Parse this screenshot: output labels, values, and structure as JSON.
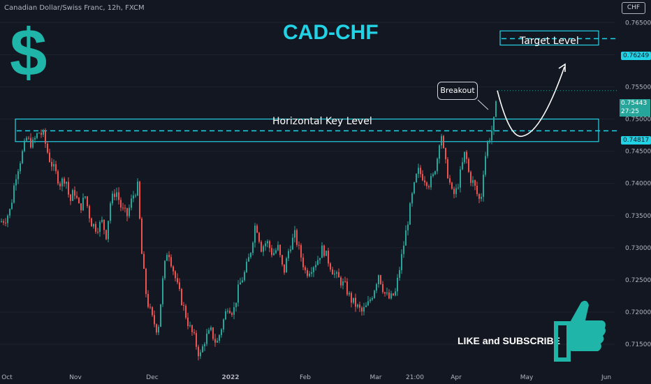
{
  "header": {
    "symbol_title": "Canadian Dollar/Swiss Franc, 12h, FXCM",
    "currency_button": "CHF"
  },
  "annotations": {
    "main_title": "CAD-CHF",
    "dollar_symbol": "$",
    "target_label": "Target Level",
    "key_level_label": "Horizontal Key Level",
    "breakout_label": "Breakout",
    "like_subscribe": "LIKE and SUBSCRIBE"
  },
  "price_badges": {
    "target": "0.76249",
    "key": "0.74817",
    "current_price": "0.75443",
    "countdown": "27:25"
  },
  "colors": {
    "background": "#131722",
    "up": "#26a69a",
    "down": "#ef5350",
    "accent": "#22d3e6",
    "icon": "#1fb5a8"
  },
  "chart_data": {
    "type": "candlestick",
    "title": "CAD-CHF",
    "ylim": [
      0.711,
      0.7685
    ],
    "y_ticks": [
      "0.76500",
      "0.76000",
      "0.75500",
      "0.75000",
      "0.74500",
      "0.74000",
      "0.73500",
      "0.73000",
      "0.72500",
      "0.72000",
      "0.71500"
    ],
    "x_ticks": [
      "Oct",
      "Nov",
      "Dec",
      "2022",
      "Feb",
      "Mar",
      "21:00",
      "Apr",
      "May",
      "Jun"
    ],
    "key_level_zone": [
      0.7465,
      0.75
    ],
    "key_level": 0.74817,
    "target_zone": [
      0.7615,
      0.7637
    ],
    "target_level": 0.76249,
    "last_price": 0.75443,
    "close_path": [
      [
        0,
        0.734
      ],
      [
        8,
        0.7345
      ],
      [
        15,
        0.736
      ],
      [
        22,
        0.741
      ],
      [
        30,
        0.744
      ],
      [
        38,
        0.747
      ],
      [
        46,
        0.746
      ],
      [
        55,
        0.748
      ],
      [
        62,
        0.7475
      ],
      [
        70,
        0.744
      ],
      [
        78,
        0.742
      ],
      [
        86,
        0.74
      ],
      [
        94,
        0.741
      ],
      [
        100,
        0.737
      ],
      [
        106,
        0.739
      ],
      [
        114,
        0.736
      ],
      [
        122,
        0.738
      ],
      [
        130,
        0.734
      ],
      [
        138,
        0.733
      ],
      [
        146,
        0.734
      ],
      [
        152,
        0.732
      ],
      [
        158,
        0.737
      ],
      [
        166,
        0.739
      ],
      [
        174,
        0.736
      ],
      [
        182,
        0.735
      ],
      [
        190,
        0.738
      ],
      [
        197,
        0.7395
      ],
      [
        203,
        0.729
      ],
      [
        210,
        0.722
      ],
      [
        218,
        0.719
      ],
      [
        226,
        0.717
      ],
      [
        234,
        0.726
      ],
      [
        240,
        0.73
      ],
      [
        247,
        0.727
      ],
      [
        254,
        0.724
      ],
      [
        262,
        0.721
      ],
      [
        270,
        0.718
      ],
      [
        278,
        0.716
      ],
      [
        286,
        0.713
      ],
      [
        294,
        0.716
      ],
      [
        302,
        0.717
      ],
      [
        310,
        0.715
      ],
      [
        318,
        0.718
      ],
      [
        326,
        0.721
      ],
      [
        334,
        0.72
      ],
      [
        342,
        0.724
      ],
      [
        350,
        0.726
      ],
      [
        358,
        0.729
      ],
      [
        366,
        0.734
      ],
      [
        374,
        0.73
      ],
      [
        382,
        0.731
      ],
      [
        390,
        0.729
      ],
      [
        398,
        0.73
      ],
      [
        406,
        0.726
      ],
      [
        414,
        0.73
      ],
      [
        422,
        0.732
      ],
      [
        430,
        0.729
      ],
      [
        438,
        0.726
      ],
      [
        446,
        0.727
      ],
      [
        454,
        0.728
      ],
      [
        462,
        0.73
      ],
      [
        470,
        0.728
      ],
      [
        478,
        0.726
      ],
      [
        486,
        0.725
      ],
      [
        494,
        0.724
      ],
      [
        502,
        0.722
      ],
      [
        510,
        0.721
      ],
      [
        518,
        0.72
      ],
      [
        526,
        0.721
      ],
      [
        534,
        0.723
      ],
      [
        542,
        0.726
      ],
      [
        550,
        0.723
      ],
      [
        558,
        0.722
      ],
      [
        566,
        0.723
      ],
      [
        574,
        0.728
      ],
      [
        582,
        0.733
      ],
      [
        590,
        0.738
      ],
      [
        598,
        0.742
      ],
      [
        606,
        0.741
      ],
      [
        614,
        0.74
      ],
      [
        620,
        0.741
      ],
      [
        626,
        0.744
      ],
      [
        631,
        0.7485
      ],
      [
        636,
        0.744
      ],
      [
        642,
        0.741
      ],
      [
        648,
        0.738
      ],
      [
        654,
        0.739
      ],
      [
        660,
        0.742
      ],
      [
        666,
        0.745
      ],
      [
        672,
        0.741
      ],
      [
        678,
        0.74
      ],
      [
        684,
        0.738
      ],
      [
        688,
        0.737
      ],
      [
        692,
        0.742
      ],
      [
        697,
        0.746
      ],
      [
        702,
        0.7475
      ],
      [
        706,
        0.749
      ],
      [
        709,
        0.751
      ],
      [
        712,
        0.754
      ]
    ]
  }
}
